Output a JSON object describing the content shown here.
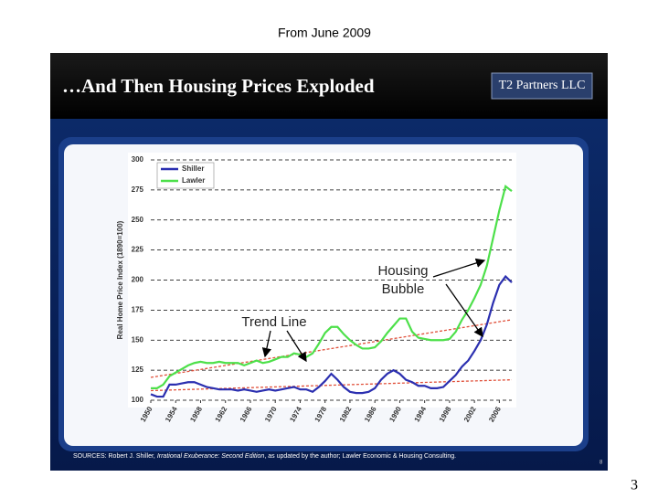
{
  "caption": "From June 2009",
  "page_number": "3",
  "slide": {
    "title": "…And Then Housing Prices Exploded",
    "logo": "T2 Partners LLC",
    "sources": [
      "SOURCES: Robert J. Shiller, ",
      "Irrational Exuberance: Second Edition",
      ", as updated by the author; Lawler Economic & Housing Consulting."
    ],
    "slide_number": "8"
  },
  "chart_data": {
    "type": "line",
    "y_label": "Real Home Price Index (1890=100)",
    "xlim": [
      1950,
      2008
    ],
    "xticks": [
      1950,
      1954,
      1958,
      1962,
      1966,
      1970,
      1974,
      1978,
      1982,
      1986,
      1990,
      1994,
      1998,
      2002,
      2006
    ],
    "ylim": [
      100,
      300
    ],
    "yticks": [
      100,
      125,
      150,
      175,
      200,
      225,
      250,
      275,
      300
    ],
    "grid": true,
    "legend": "top-left",
    "x": [
      1950,
      1951,
      1952,
      1953,
      1954,
      1955,
      1956,
      1957,
      1958,
      1959,
      1960,
      1961,
      1962,
      1963,
      1964,
      1965,
      1966,
      1967,
      1968,
      1969,
      1970,
      1971,
      1972,
      1973,
      1974,
      1975,
      1976,
      1977,
      1978,
      1979,
      1980,
      1981,
      1982,
      1983,
      1984,
      1985,
      1986,
      1987,
      1988,
      1989,
      1990,
      1991,
      1992,
      1993,
      1994,
      1995,
      1996,
      1997,
      1998,
      1999,
      2000,
      2001,
      2002,
      2003,
      2004,
      2005,
      2006,
      2007,
      2008
    ],
    "series": [
      {
        "name": "Shiller",
        "color": "#2b2fb0",
        "values": [
          105,
          103,
          103,
          113,
          113,
          114,
          115,
          115,
          113,
          111,
          110,
          109,
          109,
          109,
          108,
          109,
          108,
          107,
          108,
          109,
          108,
          109,
          110,
          111,
          109,
          109,
          107,
          111,
          116,
          122,
          117,
          111,
          107,
          106,
          106,
          107,
          110,
          117,
          122,
          125,
          122,
          117,
          115,
          112,
          112,
          110,
          110,
          111,
          116,
          121,
          128,
          133,
          141,
          150,
          163,
          181,
          196,
          203,
          198
        ]
      },
      {
        "name": "Lawler",
        "color": "#4de04a",
        "values": [
          110,
          110,
          113,
          120,
          123,
          126,
          129,
          131,
          132,
          131,
          131,
          132,
          131,
          131,
          131,
          129,
          131,
          133,
          131,
          132,
          134,
          136,
          136,
          139,
          138,
          136,
          139,
          147,
          156,
          161,
          161,
          155,
          150,
          146,
          143,
          143,
          144,
          149,
          156,
          162,
          168,
          168,
          157,
          152,
          151,
          150,
          150,
          150,
          151,
          157,
          167,
          175,
          185,
          196,
          212,
          235,
          258,
          278,
          274
        ]
      }
    ],
    "trend_lines": [
      {
        "color": "#e0503a",
        "x": [
          1950,
          2008
        ],
        "values": [
          119,
          167
        ]
      },
      {
        "color": "#e0503a",
        "x": [
          1950,
          2008
        ],
        "values": [
          108,
          117
        ]
      }
    ],
    "annotations": [
      {
        "lines": [
          "Housing",
          "Bubble"
        ]
      },
      {
        "lines": [
          "Trend Line"
        ]
      }
    ]
  }
}
